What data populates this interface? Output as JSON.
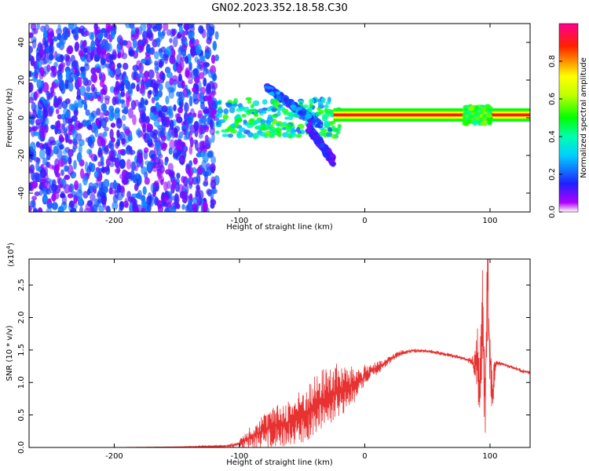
{
  "title": "GN02.2023.352.18.58.C30",
  "chart_data": [
    {
      "type": "heatmap",
      "xlabel": "Height of straight line (km)",
      "ylabel": "Frequency (Hz)",
      "xlim": [
        -268,
        132
      ],
      "ylim": [
        -50,
        50
      ],
      "xticks": [
        -200,
        -100,
        0,
        100
      ],
      "yticks": [
        -40,
        -20,
        0,
        20,
        40
      ],
      "colorbar": {
        "label": "Normalized spectral amplitude",
        "range": [
          0,
          1
        ],
        "ticks": [
          "0.0",
          "0.2",
          "0.4",
          "0.6",
          "0.8"
        ],
        "tick_values": [
          0.0,
          0.2,
          0.4,
          0.6,
          0.8
        ]
      },
      "features": [
        {
          "region": "noise",
          "x_range": [
            -268,
            -118
          ],
          "f_range": [
            -50,
            50
          ],
          "amplitude": [
            0.05,
            0.25
          ]
        },
        {
          "region": "dispersive arrivals",
          "x_range": [
            -118,
            -20
          ],
          "f_range": [
            -10,
            10
          ],
          "amplitude": [
            0.2,
            0.55
          ]
        },
        {
          "region": "upper branch",
          "x_range": [
            -78,
            -35
          ],
          "f_range": [
            -5,
            17
          ],
          "amplitude": [
            0.1,
            0.3
          ]
        },
        {
          "region": "lower tail",
          "x_range": [
            -45,
            -25
          ],
          "f_range": [
            -25,
            -5
          ],
          "amplitude": [
            0.05,
            0.2
          ]
        },
        {
          "region": "narrowband tone",
          "x_range": [
            -25,
            132
          ],
          "f_center": 1.5,
          "amplitude": [
            0.8,
            1.0
          ]
        },
        {
          "region": "burst",
          "x_range": [
            80,
            100
          ],
          "f_range": [
            -3,
            6
          ],
          "amplitude": [
            0.4,
            0.6
          ]
        }
      ]
    },
    {
      "type": "line",
      "xlabel": "Height of straight line (km)",
      "ylabel": "SNR (10 * v/v)",
      "y_multiplier": "(x10",
      "y_multiplier_exp": "4",
      "y_multiplier_close": ")",
      "xlim": [
        -268,
        132
      ],
      "ylim": [
        0,
        2.9
      ],
      "xticks": [
        -200,
        -100,
        0,
        100
      ],
      "yticks": [
        "0.0",
        "0.5",
        "1.0",
        "1.5",
        "2.0",
        "2.5"
      ],
      "ytick_values": [
        0.0,
        0.5,
        1.0,
        1.5,
        2.0,
        2.5
      ],
      "color": "#e83232",
      "series": [
        {
          "x": [
            -268,
            -200,
            -150,
            -110,
            -100,
            -95,
            -85,
            -75,
            -65,
            -55,
            -45,
            -35,
            -25,
            -15,
            -5,
            0,
            5,
            10,
            15,
            20,
            25,
            30,
            35,
            40,
            45,
            50,
            55,
            60,
            65,
            70,
            75,
            80,
            85,
            88,
            90,
            92,
            94,
            96,
            98,
            100,
            102,
            105,
            110,
            115,
            120,
            125,
            132
          ],
          "y": [
            0.0,
            0.0,
            0.01,
            0.02,
            0.06,
            0.12,
            0.22,
            0.3,
            0.36,
            0.42,
            0.55,
            0.7,
            0.82,
            0.9,
            1.0,
            1.08,
            1.18,
            1.22,
            1.27,
            1.35,
            1.42,
            1.46,
            1.48,
            1.49,
            1.49,
            1.48,
            1.47,
            1.45,
            1.43,
            1.41,
            1.39,
            1.36,
            1.33,
            1.2,
            1.45,
            0.9,
            2.1,
            0.6,
            2.6,
            1.35,
            0.9,
            1.3,
            1.28,
            1.25,
            1.22,
            1.18,
            1.15
          ],
          "noise_amplitude": [
            0.0,
            0.0,
            0.0,
            0.02,
            0.05,
            0.15,
            0.25,
            0.3,
            0.35,
            0.4,
            0.45,
            0.5,
            0.5,
            0.35,
            0.25,
            0.2,
            0.12,
            0.1,
            0.08,
            0.06,
            0.05,
            0.04,
            0.03,
            0.03,
            0.03,
            0.03,
            0.03,
            0.03,
            0.03,
            0.03,
            0.03,
            0.03,
            0.05,
            0.3,
            0.6,
            0.6,
            0.7,
            0.7,
            0.8,
            0.5,
            0.4,
            0.05,
            0.03,
            0.03,
            0.03,
            0.03,
            0.03
          ]
        }
      ]
    }
  ]
}
